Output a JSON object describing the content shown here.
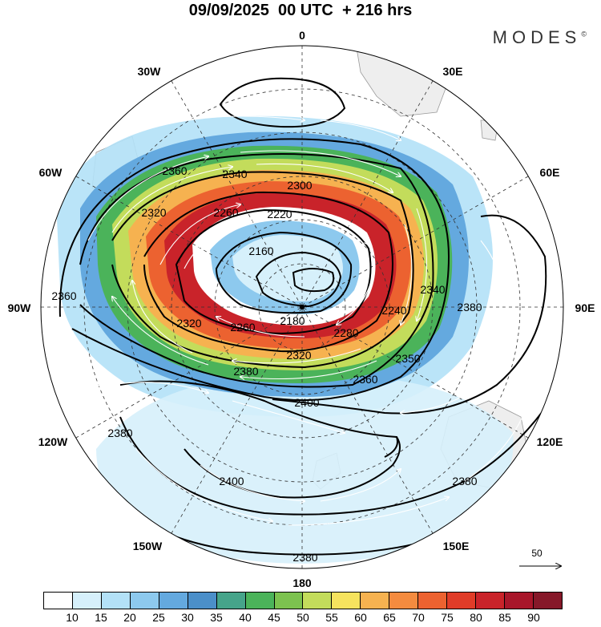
{
  "title": "09/09/2025  00 UTC  + 216 hrs",
  "brand": "MODES",
  "brand_mark": "©",
  "longitude_labels": {
    "top": "0",
    "r30e": "30E",
    "r60e": "60E",
    "r90e": "90E",
    "r120e": "120E",
    "r150e": "150E",
    "bottom": "180",
    "l150w": "150W",
    "l120w": "120W",
    "l90w": "90W",
    "l60w": "60W",
    "l30w": "30W"
  },
  "contour_labels": [
    "2360",
    "2340",
    "2300",
    "2260",
    "2220",
    "2320",
    "2360",
    "2160",
    "2180",
    "2240",
    "2340",
    "2380",
    "2320",
    "2280",
    "2260",
    "2320",
    "2380",
    "2360",
    "2350",
    "2400",
    "2380",
    "2400",
    "2380",
    "2380"
  ],
  "colorbar": {
    "colors": [
      "#ffffff",
      "#d6f0fb",
      "#b3e1f7",
      "#8dc9ee",
      "#64a9df",
      "#4b8fc9",
      "#46a48a",
      "#4bb35a",
      "#7cc24f",
      "#c3dc5b",
      "#f6e35e",
      "#f6b250",
      "#f48b3f",
      "#ec6230",
      "#e03c28",
      "#c9232a",
      "#a8162a",
      "#861829"
    ],
    "labels": [
      "10",
      "15",
      "20",
      "25",
      "30",
      "35",
      "40",
      "45",
      "50",
      "55",
      "60",
      "65",
      "70",
      "75",
      "80",
      "85",
      "90"
    ]
  },
  "reference_vector": "50"
}
